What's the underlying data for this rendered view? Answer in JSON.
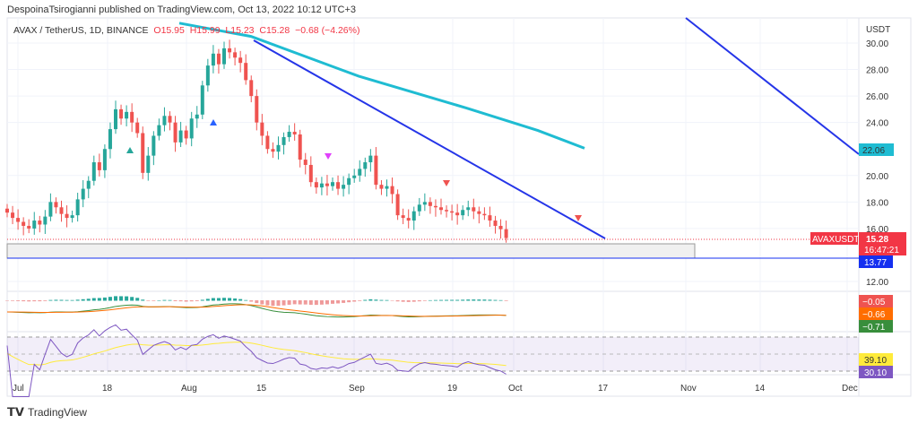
{
  "header": {
    "published": "DespoinaTsirogianni published on TradingView.com, Oct 13, 2022 10:12 UTC+3"
  },
  "legend": {
    "symbol": "AVAX / TetherUS, 1D, BINANCE",
    "open": "O15.95",
    "high": "H15.99",
    "low": "L15.23",
    "close": "C15.28",
    "change": "−0.68 (−4.26%)"
  },
  "price_axis": {
    "unit": "USDT",
    "ticks": [
      "30.00",
      "28.00",
      "26.00",
      "24.00",
      "20.00",
      "18.00",
      "16.00",
      "12.00"
    ]
  },
  "badges": {
    "ma": "22.06",
    "ticker": "AVAXUSDT",
    "last": "15.28",
    "countdown": "16:47:21",
    "level": "13.77",
    "macd1": "−0.05",
    "macd2": "−0.66",
    "macd3": "−0.71",
    "rsi_ma": "39.10",
    "rsi": "30.10"
  },
  "colors": {
    "up": "#26a69a",
    "down": "#ef5350",
    "ma": "#1fbcd2",
    "trend": "#2535e8",
    "level": "#1530f0",
    "rsi": "#7e57c2",
    "rsi_ma": "#ffeb3b"
  },
  "date_axis": [
    "Jul",
    "18",
    "Aug",
    "15",
    "Sep",
    "19",
    "Oct",
    "17",
    "Nov",
    "14",
    "Dec"
  ],
  "footer": {
    "brand": "TradingView"
  },
  "chart_data": {
    "type": "candlestick",
    "interval": "1D",
    "first_date": "2022-06-29",
    "last_date": "2022-10-13",
    "closes": [
      17.2,
      16.8,
      16.5,
      16.2,
      16.0,
      16.6,
      16.3,
      16.9,
      18.0,
      17.6,
      17.1,
      16.8,
      17.0,
      18.2,
      19.0,
      19.6,
      21.0,
      20.4,
      22.0,
      23.5,
      25.0,
      24.3,
      24.8,
      24.0,
      23.2,
      20.2,
      21.5,
      23.0,
      23.8,
      24.5,
      24.0,
      22.5,
      23.4,
      22.8,
      24.3,
      24.6,
      26.8,
      28.3,
      29.2,
      28.4,
      29.6,
      29.3,
      28.9,
      28.5,
      27.2,
      26.0,
      24.0,
      23.0,
      22.0,
      21.8,
      22.3,
      22.9,
      23.3,
      23.1,
      21.2,
      20.8,
      19.5,
      19.1,
      19.4,
      19.2,
      19.5,
      19.0,
      19.3,
      19.8,
      20.0,
      20.5,
      21.0,
      21.5,
      19.3,
      19.0,
      19.2,
      18.6,
      17.0,
      16.8,
      16.6,
      17.3,
      17.8,
      18.0,
      17.7,
      17.6,
      17.4,
      17.3,
      17.2,
      17.0,
      17.4,
      17.6,
      17.3,
      17.1,
      17.0,
      16.6,
      16.2,
      15.95,
      15.28
    ],
    "ma": [
      [
        200,
        31.5
      ],
      [
        280,
        30.5
      ],
      [
        400,
        27.5
      ],
      [
        520,
        25.1
      ],
      [
        600,
        23.4
      ],
      [
        652,
        22.06
      ]
    ],
    "levels": {
      "support": 13.77,
      "last": 15.28
    }
  }
}
